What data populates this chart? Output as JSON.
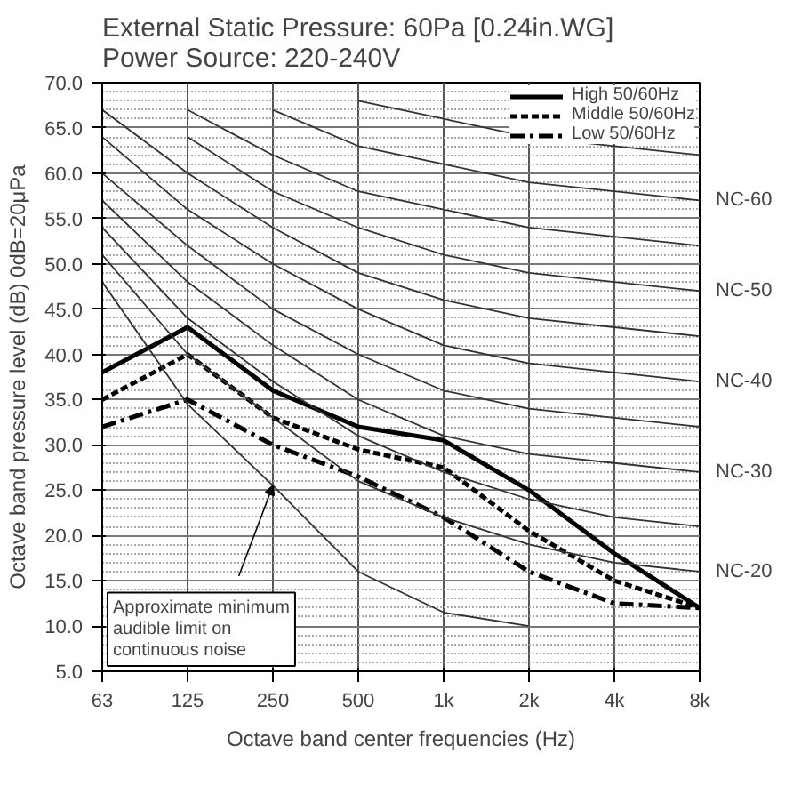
{
  "chart_data": {
    "type": "line",
    "subtitle": "External Static Pressure: 60Pa [0.24in.WG]\nPower Source: 220-240V",
    "xlabel": "Octave band center frequencies (Hz)",
    "ylabel": "Octave band pressure level (dB) 0dB=20μPa",
    "categories": [
      "63",
      "125",
      "250",
      "500",
      "1k",
      "2k",
      "4k",
      "8k"
    ],
    "ylim": [
      5,
      70
    ],
    "yticks": [
      {
        "value": 5,
        "label": "5.0"
      },
      {
        "value": 10,
        "label": "10.0"
      },
      {
        "value": 15,
        "label": "15.0"
      },
      {
        "value": 20,
        "label": "20.0"
      },
      {
        "value": 25,
        "label": "25.0"
      },
      {
        "value": 30,
        "label": "30.0"
      },
      {
        "value": 35,
        "label": "35.0"
      },
      {
        "value": 40,
        "label": "40.0"
      },
      {
        "value": 45,
        "label": "45.0"
      },
      {
        "value": 50,
        "label": "50.0"
      },
      {
        "value": 55,
        "label": "55.0"
      },
      {
        "value": 60,
        "label": "60.0"
      },
      {
        "value": 65,
        "label": "65.0"
      },
      {
        "value": 70,
        "label": "70.0"
      }
    ],
    "grid": true,
    "legend": "top right",
    "series": [
      {
        "name": "High 50/60Hz",
        "color": "#000000",
        "line_style": "solid",
        "values": [
          38,
          43,
          36,
          32,
          30.5,
          25,
          18,
          12
        ]
      },
      {
        "name": "Middle 50/60Hz",
        "color": "#000000",
        "line_style": "dashed",
        "values": [
          35,
          40,
          33,
          29.5,
          27.5,
          20.5,
          15,
          12
        ]
      },
      {
        "name": "Low 50/60Hz",
        "color": "#000000",
        "line_style": "dashdot",
        "values": [
          32,
          35,
          30,
          26.5,
          22,
          16,
          12.5,
          12
        ]
      },
      {
        "name": "NC-20",
        "color": "#333333",
        "values": [
          51,
          40,
          33,
          26,
          22,
          19,
          17,
          16
        ]
      },
      {
        "color": "#333333",
        "values": [
          54,
          44,
          37,
          31,
          27,
          24,
          22,
          21
        ]
      },
      {
        "name": "NC-30",
        "color": "#333333",
        "values": [
          57,
          48,
          41,
          35,
          31,
          29,
          28,
          27
        ]
      },
      {
        "color": "#333333",
        "values": [
          60,
          52,
          45,
          40,
          36,
          34,
          33,
          32
        ]
      },
      {
        "name": "NC-40",
        "color": "#333333",
        "values": [
          64,
          56,
          50,
          45,
          41,
          39,
          38,
          37
        ]
      },
      {
        "color": "#333333",
        "values": [
          67,
          60,
          54,
          49,
          46,
          44,
          43,
          42
        ]
      },
      {
        "name": "NC-50",
        "color": "#333333",
        "values": [
          null,
          64,
          58,
          54,
          51,
          49,
          48,
          47
        ]
      },
      {
        "color": "#333333",
        "values": [
          null,
          67,
          62,
          58,
          56,
          54,
          53,
          52
        ]
      },
      {
        "name": "NC-60",
        "color": "#333333",
        "values": [
          null,
          null,
          67,
          63,
          61,
          59,
          58,
          57
        ]
      },
      {
        "color": "#333333",
        "values": [
          null,
          null,
          null,
          68,
          66,
          64,
          63,
          62
        ]
      },
      {
        "color": "#333333",
        "values": [
          48,
          34.5,
          25.5,
          16,
          11.5,
          10,
          null,
          null
        ]
      }
    ],
    "annotations": [
      {
        "text": "Approximate minimum\naudible limit on\ncontinuous noise",
        "x": "250",
        "y": 25.5
      }
    ]
  }
}
